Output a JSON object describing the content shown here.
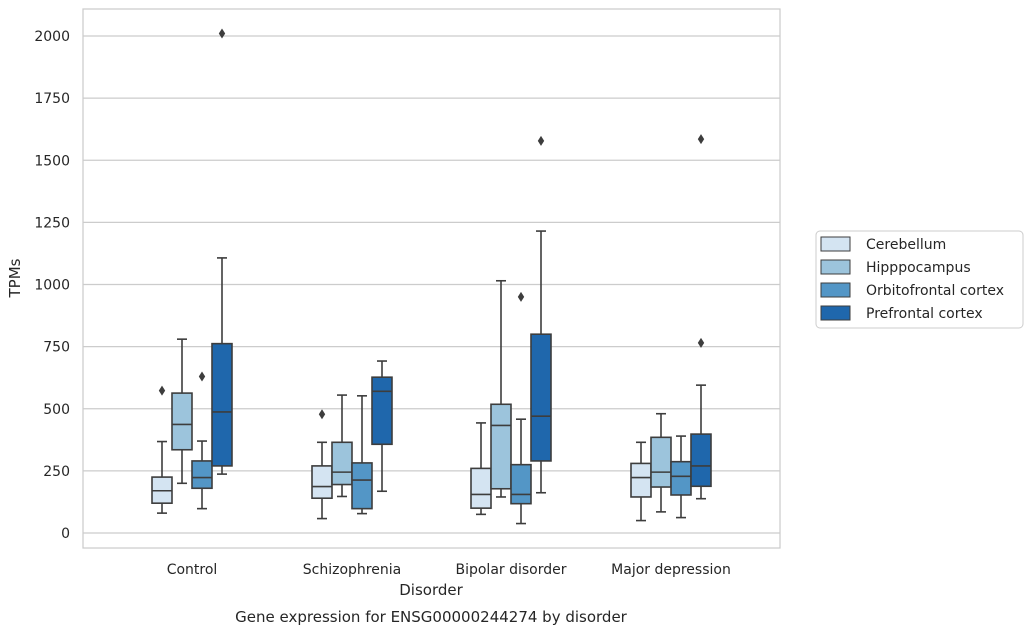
{
  "chart_data": {
    "type": "box",
    "caption": "Gene expression for ENSG00000244274 by disorder",
    "xlabel": "Disorder",
    "ylabel": "TPMs",
    "ylim": [
      -60,
      2110
    ],
    "yticks": [
      0,
      250,
      500,
      750,
      1000,
      1250,
      1500,
      1750,
      2000
    ],
    "grid": "horizontal",
    "legend_position": "right",
    "categories": [
      "Control",
      "Schizophrenia",
      "Bipolar disorder",
      "Major depression"
    ],
    "series": [
      {
        "name": "Cerebellum",
        "color": "#d4e4f2",
        "boxes": [
          {
            "whislo": 80,
            "q1": 120,
            "med": 170,
            "q3": 225,
            "whishi": 368,
            "fliers": [
              573
            ]
          },
          {
            "whislo": 58,
            "q1": 140,
            "med": 187,
            "q3": 270,
            "whishi": 365,
            "fliers": [
              478
            ]
          },
          {
            "whislo": 75,
            "q1": 100,
            "med": 155,
            "q3": 260,
            "whishi": 443,
            "fliers": []
          },
          {
            "whislo": 50,
            "q1": 145,
            "med": 223,
            "q3": 280,
            "whishi": 365,
            "fliers": []
          }
        ]
      },
      {
        "name": "Hipppocampus",
        "color": "#9cc4dc",
        "boxes": [
          {
            "whislo": 200,
            "q1": 335,
            "med": 437,
            "q3": 563,
            "whishi": 780,
            "fliers": []
          },
          {
            "whislo": 147,
            "q1": 195,
            "med": 245,
            "q3": 365,
            "whishi": 555,
            "fliers": []
          },
          {
            "whislo": 145,
            "q1": 178,
            "med": 433,
            "q3": 518,
            "whishi": 1015,
            "fliers": []
          },
          {
            "whislo": 85,
            "q1": 185,
            "med": 245,
            "q3": 385,
            "whishi": 480,
            "fliers": []
          }
        ]
      },
      {
        "name": "Orbitofrontal cortex",
        "color": "#5396c6",
        "boxes": [
          {
            "whislo": 98,
            "q1": 180,
            "med": 223,
            "q3": 290,
            "whishi": 370,
            "fliers": [
              630
            ]
          },
          {
            "whislo": 78,
            "q1": 98,
            "med": 213,
            "q3": 282,
            "whishi": 552,
            "fliers": []
          },
          {
            "whislo": 38,
            "q1": 118,
            "med": 155,
            "q3": 275,
            "whishi": 458,
            "fliers": [
              950
            ]
          },
          {
            "whislo": 62,
            "q1": 153,
            "med": 228,
            "q3": 287,
            "whishi": 390,
            "fliers": []
          }
        ]
      },
      {
        "name": "Prefrontal cortex",
        "color": "#1f67ac",
        "boxes": [
          {
            "whislo": 237,
            "q1": 270,
            "med": 487,
            "q3": 762,
            "whishi": 1107,
            "fliers": [
              2010
            ]
          },
          {
            "whislo": 168,
            "q1": 357,
            "med": 570,
            "q3": 627,
            "whishi": 692,
            "fliers": []
          },
          {
            "whislo": 162,
            "q1": 290,
            "med": 470,
            "q3": 800,
            "whishi": 1215,
            "fliers": [
              1578
            ]
          },
          {
            "whislo": 138,
            "q1": 188,
            "med": 270,
            "q3": 398,
            "whishi": 595,
            "fliers": [
              1585,
              765
            ]
          }
        ]
      }
    ]
  }
}
